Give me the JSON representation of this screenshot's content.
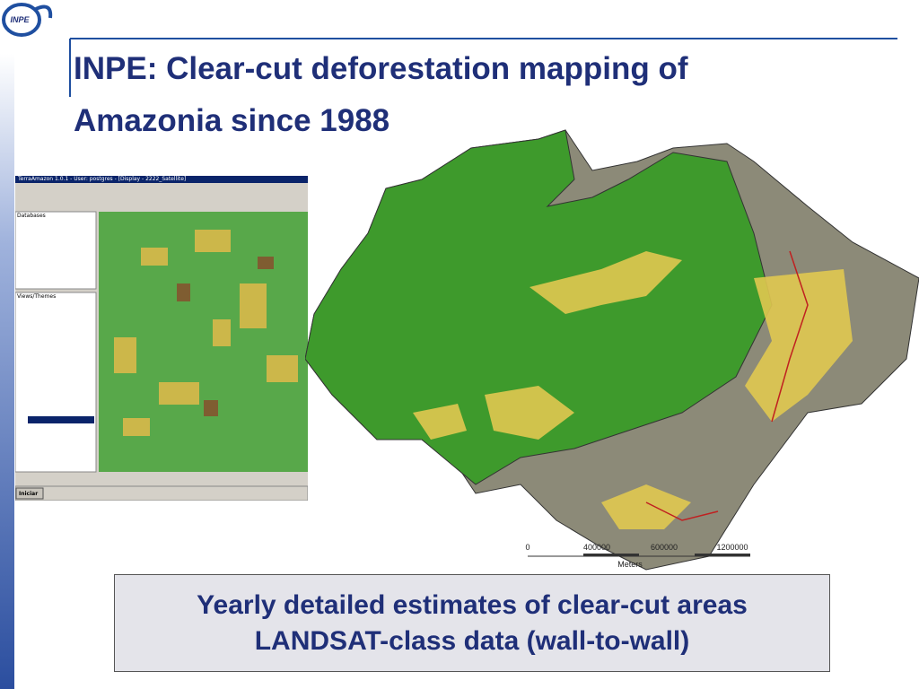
{
  "header": {
    "logo": "INPE",
    "title_lines": [
      "INPE: Clear-cut deforestation mapping of",
      "Amazonia since 1988"
    ]
  },
  "screenshot": {
    "window_title": "TerraAmazon 1.0.1 - User: postgres - [Display - 2222_Satellite]",
    "panels": [
      "Databases",
      "Views/Themes"
    ],
    "start_button": "Iniciar"
  },
  "map": {
    "scale_labels": [
      "0",
      "400000",
      "600000",
      "1200000"
    ],
    "unit": "Meters"
  },
  "caption": {
    "lines": [
      "Yearly detailed estimates of clear-cut areas",
      "LANDSAT-class data (wall-to-wall)"
    ]
  }
}
